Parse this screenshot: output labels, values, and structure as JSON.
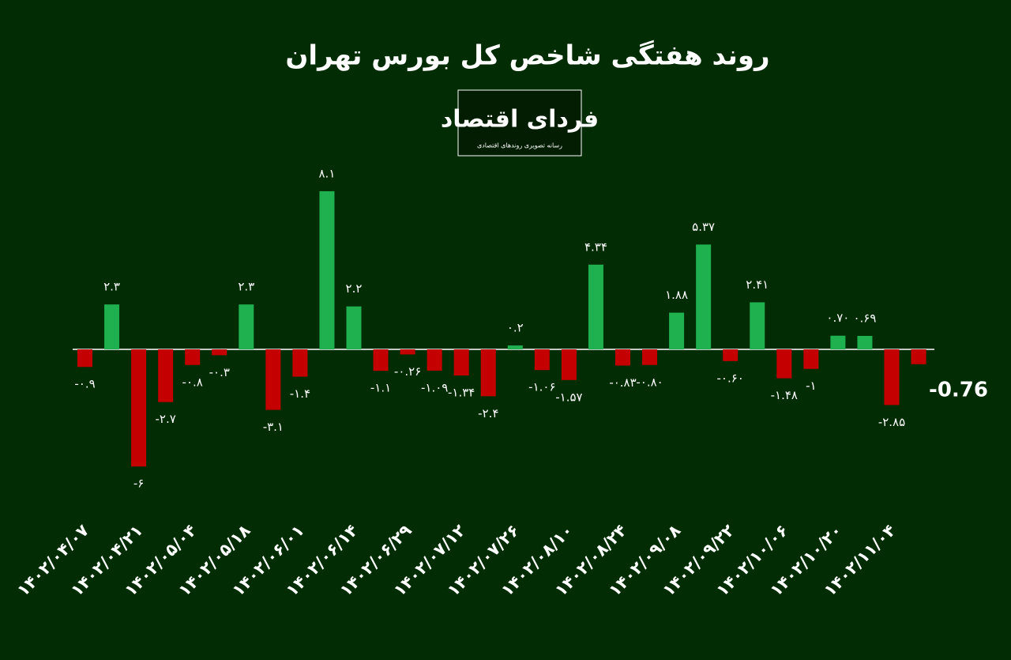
{
  "chart_data": {
    "type": "bar",
    "title": "روند هفتگی شاخص کل بورس تهران",
    "logo": {
      "name": "فردای اقتصاد",
      "tagline": "رسانه تصویری روندهای اقتصادی"
    },
    "categories": [
      "۱۴۰۲/۰۴/۰۷",
      null,
      "۱۴۰۲/۰۴/۲۱",
      null,
      "۱۴۰۲/۰۵/۰۴",
      null,
      "۱۴۰۲/۰۵/۱۸",
      null,
      "۱۴۰۲/۰۶/۰۱",
      null,
      "۱۴۰۲/۰۶/۱۴",
      null,
      "۱۴۰۲/۰۶/۲۹",
      null,
      "۱۴۰۲/۰۷/۱۲",
      null,
      "۱۴۰۲/۰۷/۲۶",
      null,
      "۱۴۰۲/۰۸/۱۰",
      null,
      "۱۴۰۲/۰۸/۲۴",
      null,
      "۱۴۰۲/۰۹/۰۸",
      null,
      "۱۴۰۲/۰۹/۲۲",
      null,
      "۱۴۰۲/۱۰/۰۶",
      null,
      "۱۴۰۲/۱۰/۲۰",
      null,
      "۱۴۰۲/۱۱/۰۴",
      null
    ],
    "values": [
      -0.9,
      2.3,
      -6,
      -2.7,
      -0.8,
      -0.3,
      2.3,
      -3.1,
      -1.4,
      8.1,
      2.2,
      -1.1,
      -0.26,
      -1.09,
      -1.34,
      -2.4,
      0.2,
      -1.06,
      -1.57,
      4.34,
      -0.83,
      -0.8,
      1.88,
      5.37,
      -0.6,
      2.41,
      -1.48,
      -1,
      0.7,
      0.69,
      -2.85,
      -0.76
    ],
    "value_labels": [
      "-۰.۹",
      "۲.۳",
      "-۶",
      "-۲.۷",
      "-۰.۸",
      "-۰.۳",
      "۲.۳",
      "-۳.۱",
      "-۱.۴",
      "۸.۱",
      "۲.۲",
      "-۱.۱",
      "-۰.۲۶",
      "-۱.۰۹",
      "-۱.۳۴",
      "-۲.۴",
      "۰.۲",
      "-۱.۰۶",
      "-۱.۵۷",
      "۴.۳۴",
      "-۰.۸۳",
      "-۰.۸۰",
      "۱.۸۸",
      "۵.۳۷",
      "-۰.۶۰",
      "۲.۴۱",
      "-۱.۴۸",
      "-۱",
      "۰.۷۰",
      "۰.۶۹",
      "-۲.۸۵",
      "-0.76"
    ],
    "positive_color": "#1fb14f",
    "negative_color": "#c40000"
  }
}
